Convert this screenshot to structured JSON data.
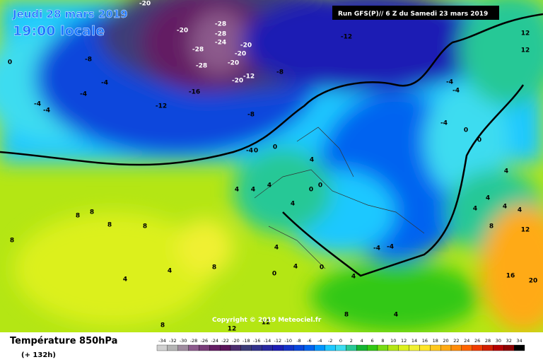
{
  "header": {
    "date": "Jeudi 28 mars 2019",
    "time": "19:00 locale",
    "run": "Run GFS(P)// 6 Z du Samedi 23 mars 2019"
  },
  "copyright": "Copyright © 2019 Meteociel.fr",
  "footer": {
    "title": "Température 850hPa",
    "subtitle": "(+ 132h)"
  },
  "legend": {
    "values": [
      -34,
      -32,
      -30,
      -28,
      -26,
      -24,
      -22,
      -20,
      -18,
      -16,
      -14,
      -12,
      -10,
      -8,
      -6,
      -4,
      -2,
      0,
      2,
      4,
      6,
      8,
      10,
      12,
      14,
      16,
      18,
      20,
      22,
      24,
      26,
      28,
      30,
      32,
      34
    ],
    "colors": [
      "#d0d0d0",
      "#b4b4b4",
      "#a08ca0",
      "#8c5a8c",
      "#783c78",
      "#641e64",
      "#5a145a",
      "#4b2d6e",
      "#3c3c78",
      "#32328c",
      "#2828a0",
      "#1e1eb4",
      "#1432c8",
      "#0a46dc",
      "#0064f0",
      "#0096ff",
      "#1ec8ff",
      "#3cdcf0",
      "#28c896",
      "#14b432",
      "#32c814",
      "#78dc14",
      "#b4e614",
      "#dcf01e",
      "#f0f032",
      "#ffe628",
      "#ffc81e",
      "#ffaa14",
      "#ff8c0a",
      "#ff6400",
      "#f03c00",
      "#d21e00",
      "#b40000",
      "#8c0000",
      "#000000"
    ]
  },
  "map_labels": [
    "-20",
    "-20",
    "-28",
    "-28",
    "-24",
    "-28",
    "-20",
    "-20",
    "-28",
    "-20",
    "-12",
    "-20",
    "-16",
    "-12",
    "-12",
    "-8",
    "-8",
    "-8",
    "-4",
    "-4",
    "-4",
    "-4",
    "-4",
    "0",
    "0",
    "0",
    "4",
    "4",
    "4",
    "4",
    "0",
    "0",
    "4",
    "8",
    "8",
    "8",
    "8",
    "4",
    "4",
    "8",
    "8",
    "12",
    "12",
    "12",
    "16",
    "20",
    "-4",
    "-4",
    "-4",
    "0",
    "0",
    "4",
    "4",
    "4",
    "4",
    "4",
    "8",
    "-4",
    "-4",
    "0",
    "4",
    "4",
    "0",
    "4",
    "8",
    "12",
    "12",
    "8",
    "4"
  ]
}
